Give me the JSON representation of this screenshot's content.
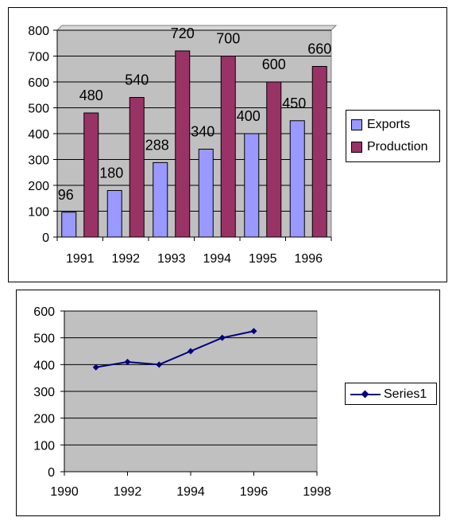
{
  "chart_data": [
    {
      "type": "bar",
      "categories": [
        "1991",
        "1992",
        "1993",
        "1994",
        "1995",
        "1996"
      ],
      "series": [
        {
          "name": "Exports",
          "values": [
            96,
            180,
            288,
            340,
            400,
            450
          ],
          "color": "#9999ff"
        },
        {
          "name": "Production",
          "values": [
            480,
            540,
            720,
            700,
            600,
            660
          ],
          "color": "#993366"
        }
      ],
      "ylim": [
        0,
        800
      ],
      "yticks": [
        "0",
        "100",
        "200",
        "300",
        "400",
        "500",
        "600",
        "700",
        "800"
      ],
      "data_labels": true,
      "grid": true,
      "plot_background": "#c0c0c0",
      "legend": "right"
    },
    {
      "type": "line",
      "series": [
        {
          "name": "Series1",
          "x": [
            1991,
            1992,
            1993,
            1994,
            1995,
            1996
          ],
          "values": [
            390,
            410,
            400,
            450,
            500,
            525
          ],
          "color": "#000080",
          "marker": "diamond"
        }
      ],
      "xlim": [
        1990,
        1998
      ],
      "xticks": [
        "1990",
        "1992",
        "1994",
        "1996",
        "1998"
      ],
      "ylim": [
        0,
        600
      ],
      "yticks": [
        "0",
        "100",
        "200",
        "300",
        "400",
        "500",
        "600"
      ],
      "grid": true,
      "plot_background": "#c0c0c0",
      "legend": "right"
    }
  ]
}
